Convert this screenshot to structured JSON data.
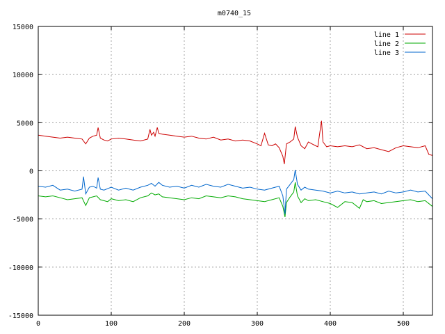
{
  "chart_data": {
    "type": "line",
    "title": "m0740_15",
    "xlabel": "",
    "ylabel": "",
    "xlim": [
      0,
      540
    ],
    "ylim": [
      -15000,
      15000
    ],
    "xticks": [
      0,
      100,
      200,
      300,
      400,
      500
    ],
    "yticks": [
      -15000,
      -10000,
      -5000,
      0,
      5000,
      10000,
      15000
    ],
    "grid": true,
    "legend_position": "top-right",
    "series": [
      {
        "name": "line 1",
        "color": "#cc0000",
        "x": [
          0,
          10,
          20,
          30,
          40,
          50,
          60,
          65,
          70,
          75,
          80,
          82,
          85,
          90,
          95,
          100,
          110,
          120,
          130,
          140,
          150,
          153,
          155,
          158,
          160,
          163,
          165,
          170,
          180,
          190,
          200,
          210,
          220,
          230,
          240,
          250,
          260,
          270,
          280,
          290,
          300,
          305,
          310,
          315,
          320,
          325,
          330,
          335,
          337,
          340,
          345,
          350,
          352,
          355,
          360,
          365,
          370,
          375,
          380,
          383,
          385,
          388,
          390,
          395,
          400,
          410,
          420,
          430,
          440,
          450,
          460,
          470,
          480,
          490,
          500,
          510,
          520,
          530,
          535,
          540
        ],
        "y": [
          3700,
          3600,
          3500,
          3400,
          3500,
          3400,
          3300,
          2800,
          3400,
          3600,
          3700,
          4500,
          3400,
          3200,
          3100,
          3300,
          3400,
          3300,
          3200,
          3100,
          3300,
          4300,
          3700,
          4000,
          3600,
          4500,
          3900,
          3800,
          3700,
          3600,
          3500,
          3600,
          3400,
          3300,
          3500,
          3200,
          3300,
          3100,
          3200,
          3100,
          2800,
          2600,
          3900,
          2700,
          2600,
          2800,
          2400,
          1500,
          700,
          2800,
          3000,
          3300,
          4600,
          3500,
          2600,
          2300,
          3000,
          2800,
          2600,
          2500,
          3600,
          5200,
          3000,
          2500,
          2600,
          2500,
          2600,
          2500,
          2700,
          2300,
          2400,
          2200,
          2000,
          2400,
          2600,
          2500,
          2400,
          2600,
          1700,
          1600
        ]
      },
      {
        "name": "line 2",
        "color": "#00aa00",
        "x": [
          0,
          10,
          20,
          30,
          40,
          50,
          60,
          65,
          70,
          75,
          80,
          85,
          90,
          95,
          100,
          110,
          120,
          130,
          140,
          150,
          155,
          160,
          165,
          170,
          180,
          190,
          200,
          210,
          220,
          230,
          240,
          250,
          260,
          270,
          280,
          290,
          300,
          310,
          320,
          330,
          335,
          338,
          340,
          345,
          350,
          352,
          355,
          360,
          365,
          370,
          380,
          390,
          400,
          410,
          420,
          430,
          440,
          445,
          450,
          460,
          470,
          480,
          490,
          500,
          510,
          520,
          530,
          540
        ],
        "y": [
          -2600,
          -2700,
          -2600,
          -2800,
          -3000,
          -2900,
          -2800,
          -3600,
          -2800,
          -2700,
          -2600,
          -3000,
          -3100,
          -3200,
          -2900,
          -3100,
          -3000,
          -3200,
          -2800,
          -2600,
          -2300,
          -2500,
          -2400,
          -2700,
          -2800,
          -2900,
          -3000,
          -2800,
          -2900,
          -2600,
          -2700,
          -2800,
          -2600,
          -2700,
          -2900,
          -3000,
          -3100,
          -3200,
          -3000,
          -2800,
          -3700,
          -4800,
          -3300,
          -2700,
          -2200,
          -1200,
          -2600,
          -3300,
          -2900,
          -3100,
          -3000,
          -3200,
          -3400,
          -3800,
          -3200,
          -3300,
          -3900,
          -3000,
          -3200,
          -3100,
          -3400,
          -3300,
          -3200,
          -3100,
          -3000,
          -3200,
          -3100,
          -3700
        ]
      },
      {
        "name": "line 3",
        "color": "#0066cc",
        "x": [
          0,
          10,
          20,
          30,
          40,
          50,
          60,
          62,
          65,
          70,
          75,
          80,
          82,
          85,
          90,
          100,
          110,
          120,
          130,
          140,
          150,
          155,
          160,
          165,
          170,
          180,
          190,
          200,
          210,
          220,
          230,
          240,
          250,
          260,
          270,
          280,
          290,
          300,
          310,
          320,
          330,
          335,
          338,
          340,
          345,
          350,
          352,
          355,
          360,
          365,
          370,
          380,
          390,
          400,
          410,
          420,
          430,
          440,
          450,
          460,
          470,
          480,
          490,
          500,
          510,
          520,
          530,
          540
        ],
        "y": [
          -1600,
          -1700,
          -1500,
          -2000,
          -1900,
          -2100,
          -1900,
          -600,
          -2400,
          -1700,
          -1600,
          -1800,
          -700,
          -1900,
          -2000,
          -1700,
          -2000,
          -1800,
          -2000,
          -1700,
          -1500,
          -1300,
          -1600,
          -1200,
          -1500,
          -1700,
          -1600,
          -1800,
          -1500,
          -1700,
          -1400,
          -1600,
          -1700,
          -1400,
          -1600,
          -1800,
          -1700,
          -1900,
          -2000,
          -1800,
          -1600,
          -2600,
          -4500,
          -1900,
          -1400,
          -900,
          100,
          -1400,
          -2000,
          -1700,
          -1900,
          -2000,
          -2100,
          -2300,
          -2100,
          -2300,
          -2200,
          -2400,
          -2300,
          -2200,
          -2400,
          -2100,
          -2300,
          -2200,
          -2000,
          -2200,
          -2100,
          -2900
        ]
      }
    ]
  }
}
